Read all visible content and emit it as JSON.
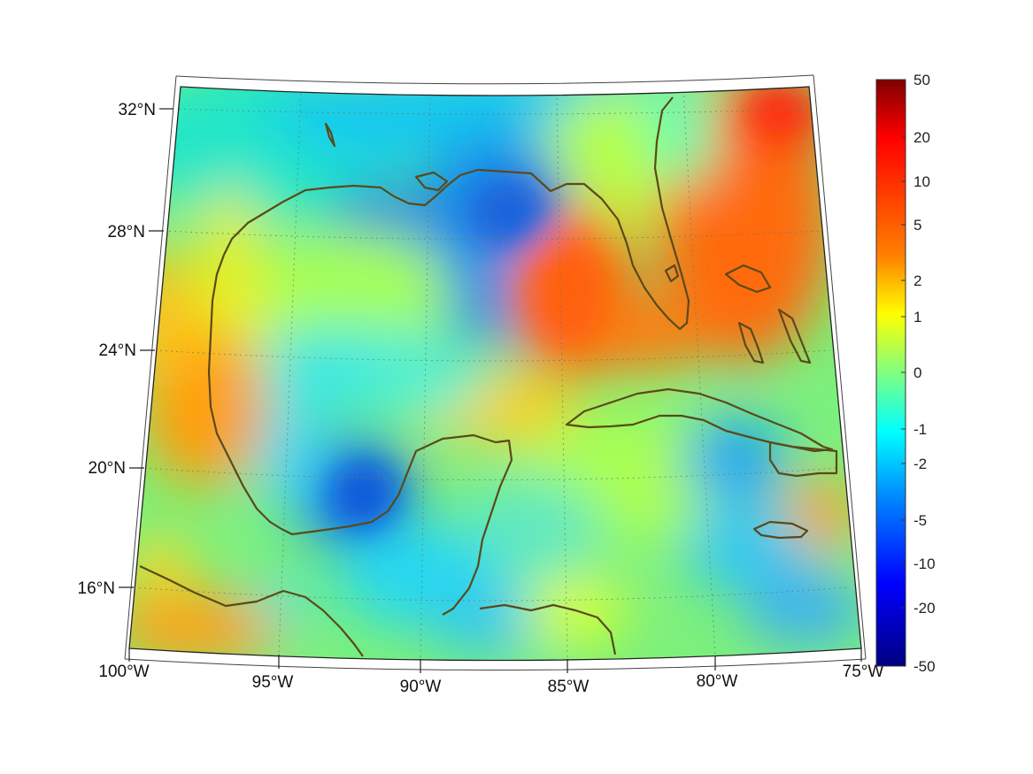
{
  "map": {
    "longitude_labels": [
      "100°W",
      "95°W",
      "90°W",
      "85°W",
      "80°W",
      "75°W"
    ],
    "latitude_labels": [
      "32°N",
      "28°N",
      "24°N",
      "20°N",
      "16°N"
    ],
    "extent": {
      "lon": [
        -100,
        -75
      ],
      "lat": [
        14.5,
        32.8
      ]
    },
    "coastline_color": "#5a4a1a",
    "field_colormap": "jet",
    "regions": [
      {
        "name": "northern-gulf-low",
        "level": -4
      },
      {
        "name": "bay-of-campeche-low",
        "level": -5
      },
      {
        "name": "florida-atlantic-high",
        "level": 6
      },
      {
        "name": "western-gulf-high",
        "level": 3
      },
      {
        "name": "caribbean-mixed",
        "level": -1
      }
    ]
  },
  "colorbar": {
    "tick_labels": [
      "50",
      "20",
      "10",
      "5",
      "2",
      "1",
      "0",
      "-1",
      "-2",
      "-5",
      "-10",
      "-20",
      "-50"
    ],
    "colors": [
      "#800000",
      "#ff0000",
      "#ff8000",
      "#ffff00",
      "#80ff80",
      "#00ffff",
      "#0080ff",
      "#0000ff",
      "#000080"
    ]
  }
}
